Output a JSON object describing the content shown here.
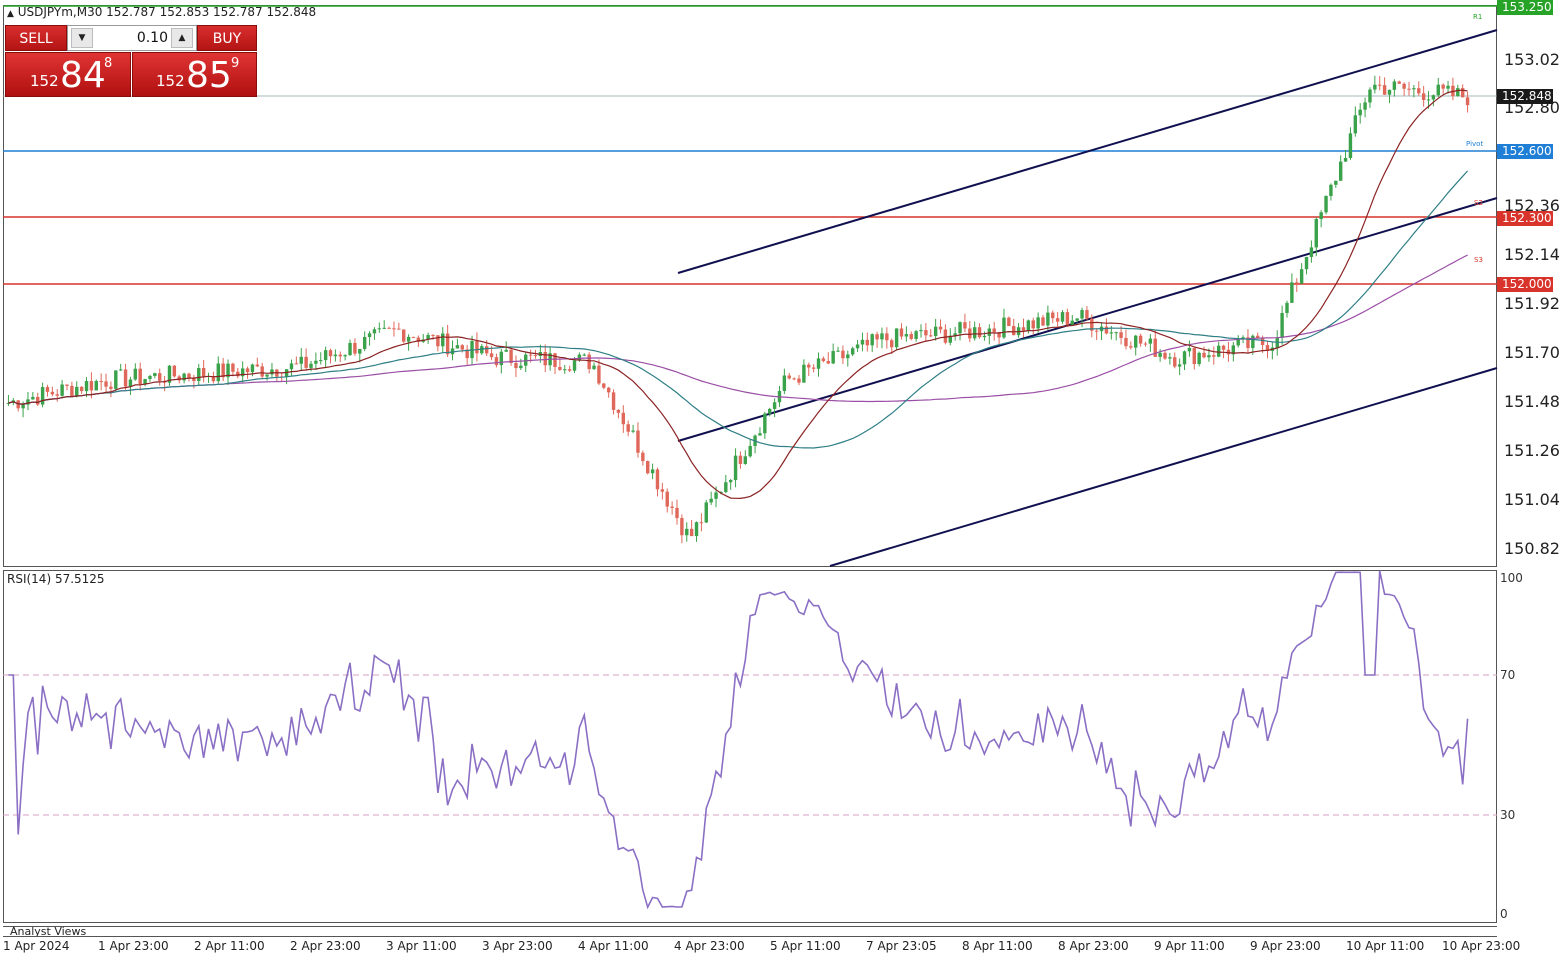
{
  "header": {
    "symbol_info": "USDJPYm,M30  152.787 152.853 152.787 152.848"
  },
  "trade_panel": {
    "sell_label": "SELL",
    "buy_label": "BUY",
    "lot": "0.10",
    "sell_small": "152",
    "sell_big": "84",
    "sell_sup": "8",
    "buy_small": "152",
    "buy_big": "85",
    "buy_sup": "9"
  },
  "price_axis": {
    "labels": [
      "153.025",
      "152.805",
      "152.365",
      "152.145",
      "151.925",
      "151.705",
      "151.485",
      "151.265",
      "151.045",
      "150.825"
    ],
    "tags": [
      {
        "text": "153.250",
        "color": "#27a327"
      },
      {
        "text": "152.848",
        "color": "#1a1a1a"
      },
      {
        "text": "152.600",
        "color": "#1f7fd6"
      },
      {
        "text": "152.300",
        "color": "#d9342b"
      },
      {
        "text": "152.000",
        "color": "#d9342b"
      }
    ]
  },
  "pivot_labels": {
    "r1": "R1",
    "pivot": "Pivot",
    "s2": "S2",
    "s3": "S3"
  },
  "rsi": {
    "title": "RSI(14) 57.5125",
    "axis": [
      "100",
      "70",
      "30",
      "0"
    ],
    "line_color": "#8a6fc4",
    "levels": [
      70,
      30
    ]
  },
  "bottom": {
    "analyst_views": "Analyst Views"
  },
  "time_axis": [
    "1 Apr 2024",
    "1 Apr 23:00",
    "2 Apr 11:00",
    "2 Apr 23:00",
    "3 Apr 11:00",
    "3 Apr 23:00",
    "4 Apr 11:00",
    "4 Apr 23:00",
    "5 Apr 11:00",
    "7 Apr 23:05",
    "8 Apr 11:00",
    "8 Apr 23:00",
    "9 Apr 11:00",
    "9 Apr 23:00",
    "10 Apr 11:00",
    "10 Apr 23:00"
  ],
  "colors": {
    "bull_candle": "#3aa24a",
    "bear_candle": "#e0685a",
    "ma_fast": "#8b2323",
    "ma_mid": "#2f7f86",
    "ma_slow": "#9b4fa6",
    "channel": "#101050",
    "resistance": "#d9342b",
    "pivot": "#1f7fd6",
    "r1": "#27a327"
  },
  "chart_data": {
    "type": "candlestick",
    "symbol": "USDJPYm",
    "timeframe": "M30",
    "ylim": [
      150.78,
      153.25
    ],
    "horizontal_levels": [
      153.25,
      152.6,
      152.3,
      152.0
    ],
    "last_price": 152.848,
    "close_path": [
      {
        "x": "1 Apr 2024",
        "y": 151.5
      },
      {
        "x": "1 Apr 23:00",
        "y": 151.6
      },
      {
        "x": "2 Apr 11:00",
        "y": 151.63
      },
      {
        "x": "2 Apr 23:00",
        "y": 151.66
      },
      {
        "x": "3 Apr 11:00",
        "y": 151.82
      },
      {
        "x": "3 Apr 23:00",
        "y": 151.7
      },
      {
        "x": "4 Apr 11:00",
        "y": 151.68
      },
      {
        "x": "4 Apr 23:00",
        "y": 150.9
      },
      {
        "x": "5 Apr 11:00",
        "y": 151.6
      },
      {
        "x": "7 Apr 23:05",
        "y": 151.78
      },
      {
        "x": "8 Apr 11:00",
        "y": 151.82
      },
      {
        "x": "8 Apr 23:00",
        "y": 151.88
      },
      {
        "x": "9 Apr 11:00",
        "y": 151.7
      },
      {
        "x": "9 Apr 23:00",
        "y": 151.77
      },
      {
        "x": "10 Apr 11:00",
        "y": 152.9
      },
      {
        "x": "10 Apr 23:00",
        "y": 152.85
      }
    ],
    "rsi_value": 57.5125
  }
}
